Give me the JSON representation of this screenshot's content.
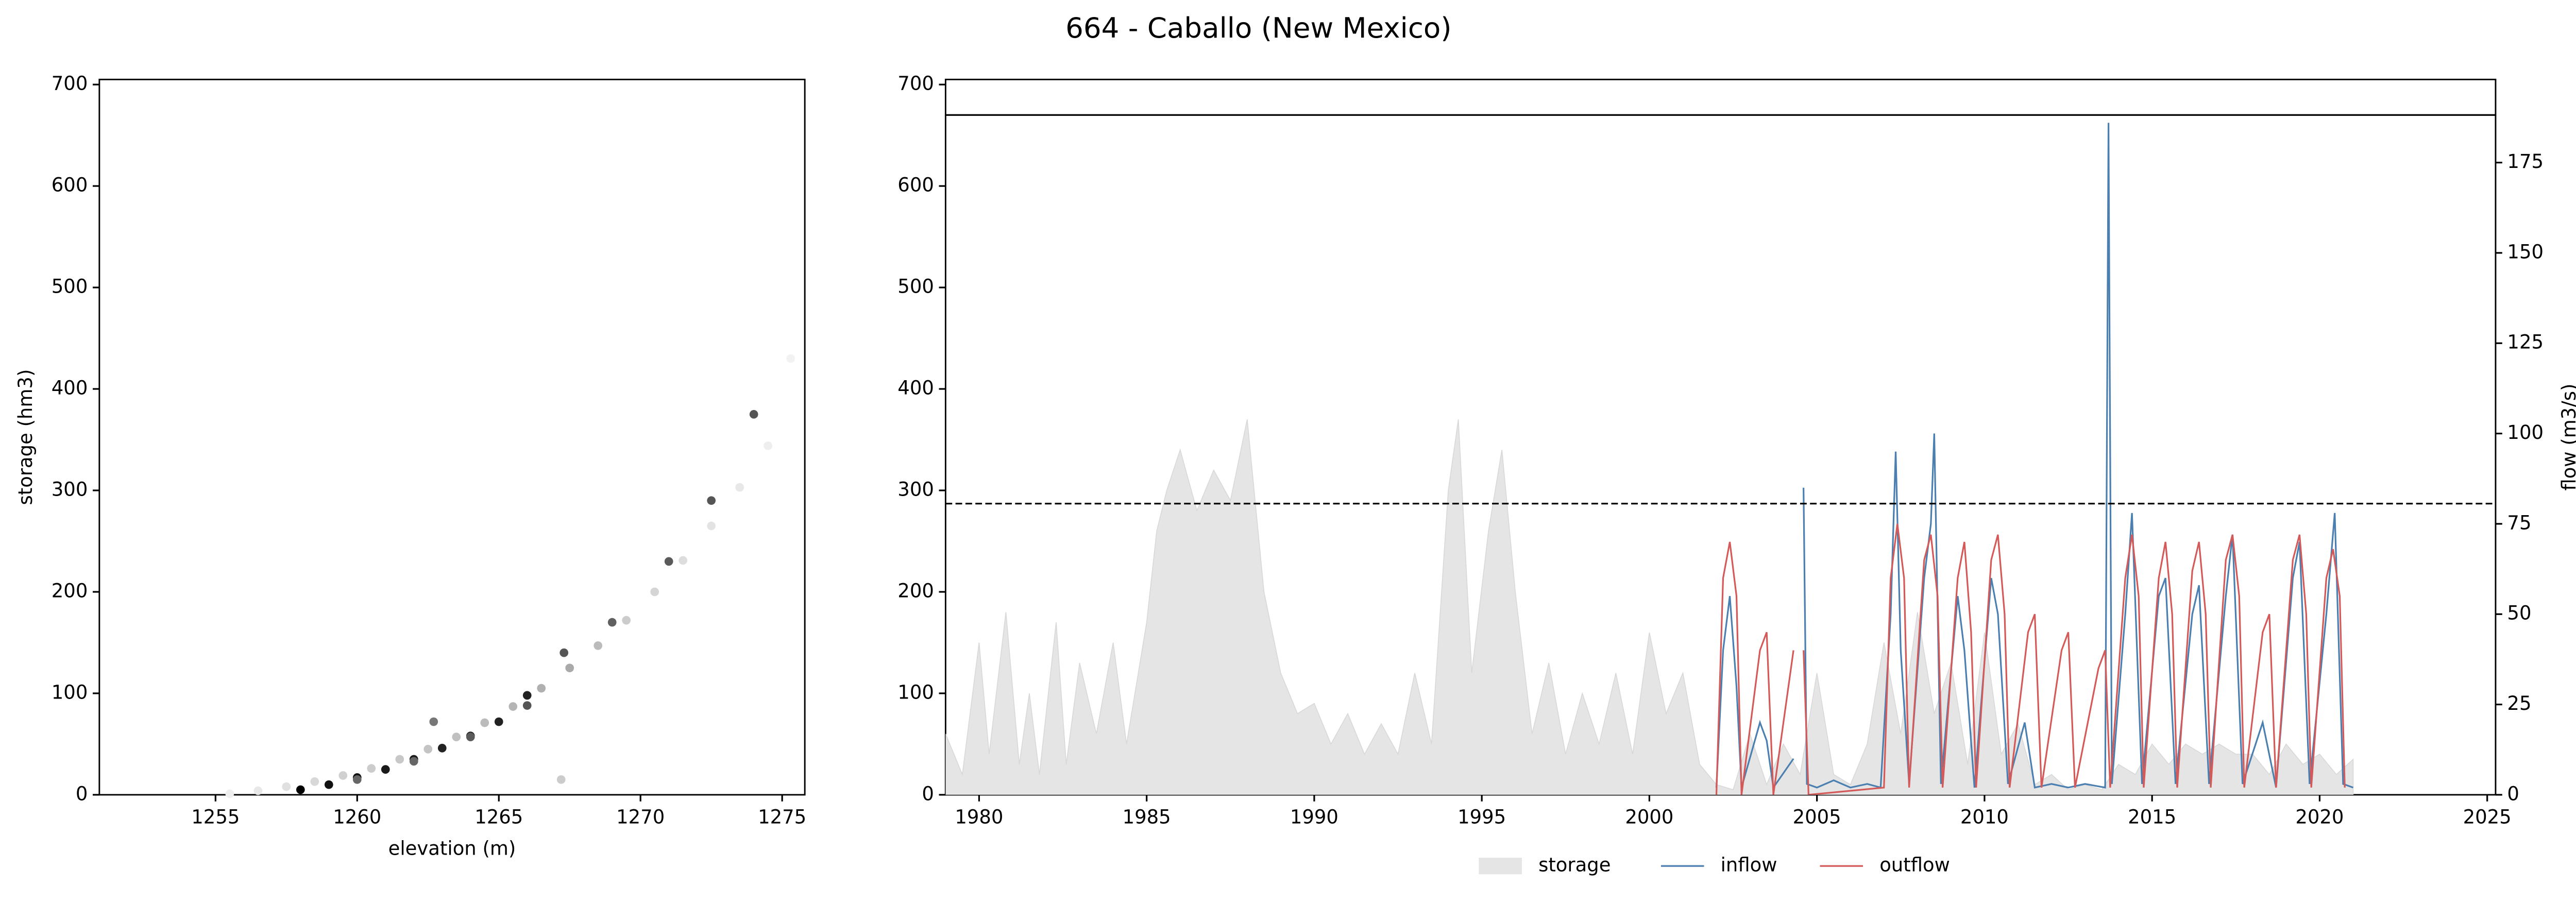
{
  "title": "664 - Caballo (New Mexico)",
  "chart_data": [
    {
      "type": "scatter",
      "xlabel": "elevation (m)",
      "ylabel": "storage (hm3)",
      "xlim": [
        1250.9,
        1275.8
      ],
      "ylim": [
        0,
        705
      ],
      "xticks": [
        1255,
        1260,
        1265,
        1270,
        1275
      ],
      "yticks": [
        0,
        100,
        200,
        300,
        400,
        500,
        600,
        700
      ],
      "x": [
        1255.5,
        1256.5,
        1257.5,
        1258.5,
        1259.5,
        1260.5,
        1261.5,
        1262.5,
        1263.5,
        1264.5,
        1265.5,
        1266.5,
        1267.5,
        1268.5,
        1269.5,
        1270.5,
        1271.5,
        1272.5,
        1273.5,
        1274.5,
        1275.3,
        1258,
        1259,
        1260,
        1261,
        1262,
        1263,
        1264,
        1265,
        1266,
        1260,
        1262,
        1264,
        1266,
        1267.3,
        1269,
        1271,
        1272.5,
        1274,
        1262.7,
        1267.2
      ],
      "y": [
        1,
        4,
        8,
        13,
        19,
        26,
        35,
        45,
        57,
        71,
        87,
        105,
        125,
        147,
        172,
        200,
        231,
        265,
        303,
        344,
        430,
        5,
        10,
        17,
        25,
        35,
        46,
        58,
        72,
        98,
        15,
        33,
        57,
        88,
        140,
        170,
        230,
        290,
        375,
        72,
        15
      ],
      "colors": [
        "#eeeeee",
        "#e8e8e8",
        "#e0e0e0",
        "#d8d8d8",
        "#d0d0d0",
        "#cccccc",
        "#c8c8c8",
        "#c4c4c4",
        "#c0c0c0",
        "#bbbbbb",
        "#b5b5b5",
        "#b0b0b0",
        "#aaaaaa",
        "#bbbbbb",
        "#cccccc",
        "#d5d5d5",
        "#dddddd",
        "#e3e3e3",
        "#e8e8e8",
        "#eeeeee",
        "#f2f2f2",
        "#000000",
        "#111111",
        "#111111",
        "#1a1a1a",
        "#1a1a1a",
        "#222222",
        "#222222",
        "#222222",
        "#222222",
        "#666666",
        "#666666",
        "#5a5a5a",
        "#555555",
        "#555555",
        "#606060",
        "#5a5a5a",
        "#555555",
        "#555555",
        "#777777",
        "#cccccc"
      ]
    },
    {
      "type": "timeseries",
      "ylabel2": "flow (m3/s)",
      "xlim": [
        1979.0,
        2025.25
      ],
      "ylim": [
        0,
        705
      ],
      "y2lim": [
        0,
        198
      ],
      "xticks": [
        1980,
        1985,
        1990,
        1995,
        2000,
        2005,
        2010,
        2015,
        2020,
        2025
      ],
      "yticks": [
        0,
        100,
        200,
        300,
        400,
        500,
        600,
        700
      ],
      "y2ticks": [
        0,
        25,
        50,
        75,
        100,
        125,
        150,
        175
      ],
      "hlines": [
        {
          "value": 670,
          "style": "solid"
        },
        {
          "value": 287,
          "style": "dashed"
        }
      ],
      "legend": "bottom",
      "series": [
        {
          "name": "storage",
          "kind": "area",
          "color": "#e5e5e5",
          "x": [
            1979,
            1979.5,
            1980,
            1980.3,
            1980.8,
            1981.2,
            1981.5,
            1981.8,
            1982.3,
            1982.6,
            1983,
            1983.5,
            1984,
            1984.4,
            1984.8,
            1985,
            1985.3,
            1985.6,
            1986,
            1986.5,
            1987,
            1987.5,
            1988,
            1988.5,
            1989,
            1989.5,
            1990,
            1990.5,
            1991,
            1991.5,
            1992,
            1992.5,
            1993,
            1993.5,
            1994,
            1994.3,
            1994.7,
            1995.2,
            1995.6,
            1996,
            1996.5,
            1997,
            1997.5,
            1998,
            1998.5,
            1999,
            1999.5,
            2000,
            2000.5,
            2001,
            2001.5,
            2002,
            2002.5,
            2003,
            2003.5,
            2004,
            2004.5,
            2005,
            2005.5,
            2006,
            2006.5,
            2007,
            2007.5,
            2008,
            2008.5,
            2009,
            2009.5,
            2010,
            2010.5,
            2011,
            2011.5,
            2012,
            2012.5,
            2013,
            2013.5,
            2014,
            2014.5,
            2015,
            2015.5,
            2016,
            2016.5,
            2017,
            2017.5,
            2018,
            2018.5,
            2019,
            2019.5,
            2020,
            2020.5,
            2021
          ],
          "values": [
            60,
            20,
            150,
            40,
            180,
            30,
            100,
            20,
            170,
            30,
            130,
            60,
            150,
            50,
            130,
            170,
            260,
            300,
            340,
            280,
            320,
            290,
            370,
            200,
            120,
            80,
            90,
            50,
            80,
            40,
            70,
            40,
            120,
            50,
            300,
            370,
            120,
            260,
            340,
            200,
            60,
            130,
            40,
            100,
            50,
            120,
            40,
            160,
            80,
            120,
            30,
            10,
            5,
            60,
            10,
            50,
            20,
            120,
            20,
            10,
            50,
            150,
            60,
            180,
            80,
            130,
            30,
            160,
            40,
            70,
            10,
            20,
            5,
            10,
            5,
            30,
            20,
            50,
            30,
            50,
            40,
            50,
            40,
            40,
            20,
            50,
            30,
            40,
            20,
            35
          ]
        },
        {
          "name": "inflow",
          "kind": "line",
          "axis": "y2",
          "color": "#4a7fb0",
          "x": [
            2002.0,
            2002.2,
            2002.4,
            2002.6,
            2002.75,
            2003.3,
            2003.5,
            2003.7,
            2004.3,
            2004.55,
            2004.6,
            2004.7,
            2005.0,
            2005.5,
            2006.0,
            2006.5,
            2006.9,
            2007.2,
            2007.35,
            2007.5,
            2007.75,
            2008.2,
            2008.4,
            2008.5,
            2008.7,
            2009.2,
            2009.4,
            2009.7,
            2010.2,
            2010.4,
            2010.7,
            2011.2,
            2011.5,
            2012.0,
            2012.5,
            2013.0,
            2013.6,
            2013.7,
            2013.8,
            2014.2,
            2014.4,
            2014.7,
            2015.2,
            2015.4,
            2015.7,
            2016.2,
            2016.4,
            2016.7,
            2017.2,
            2017.4,
            2017.7,
            2018.3,
            2018.7,
            2019.2,
            2019.4,
            2019.7,
            2020.2,
            2020.45,
            2020.7,
            2021.0
          ],
          "values": [
            2,
            40,
            55,
            30,
            2,
            20,
            15,
            2,
            10,
            null,
            85,
            3,
            2,
            4,
            2,
            3,
            2,
            50,
            95,
            40,
            3,
            60,
            75,
            100,
            3,
            55,
            40,
            2,
            60,
            50,
            3,
            20,
            2,
            3,
            2,
            3,
            2,
            186,
            3,
            50,
            78,
            3,
            55,
            60,
            3,
            50,
            58,
            3,
            55,
            72,
            3,
            20,
            2,
            60,
            70,
            3,
            50,
            78,
            3,
            2
          ]
        },
        {
          "name": "outflow",
          "kind": "line",
          "axis": "y2",
          "color": "#d45a5a",
          "x": [
            2002.0,
            2002.2,
            2002.4,
            2002.6,
            2002.75,
            2003.3,
            2003.5,
            2003.7,
            2004.3,
            2004.5,
            2004.6,
            2004.75,
            2007.0,
            2007.2,
            2007.4,
            2007.6,
            2007.75,
            2008.2,
            2008.4,
            2008.6,
            2008.75,
            2009.2,
            2009.4,
            2009.6,
            2009.75,
            2010.2,
            2010.4,
            2010.6,
            2010.75,
            2011.3,
            2011.5,
            2011.7,
            2012.3,
            2012.5,
            2012.7,
            2013.4,
            2013.6,
            2013.75,
            2014.2,
            2014.4,
            2014.6,
            2014.75,
            2015.2,
            2015.4,
            2015.6,
            2015.75,
            2016.2,
            2016.4,
            2016.6,
            2016.75,
            2017.2,
            2017.4,
            2017.6,
            2017.75,
            2018.3,
            2018.5,
            2018.7,
            2019.2,
            2019.4,
            2019.6,
            2019.75,
            2020.2,
            2020.4,
            2020.6,
            2020.75
          ],
          "values": [
            0,
            60,
            70,
            55,
            0,
            40,
            45,
            0,
            40,
            null,
            40,
            0,
            2,
            60,
            75,
            60,
            2,
            65,
            72,
            55,
            2,
            60,
            70,
            45,
            2,
            65,
            72,
            50,
            2,
            45,
            50,
            2,
            40,
            45,
            2,
            35,
            40,
            2,
            60,
            72,
            55,
            2,
            60,
            70,
            50,
            2,
            62,
            70,
            50,
            2,
            65,
            72,
            55,
            2,
            45,
            50,
            2,
            65,
            72,
            50,
            2,
            60,
            68,
            55,
            2
          ]
        }
      ]
    }
  ]
}
